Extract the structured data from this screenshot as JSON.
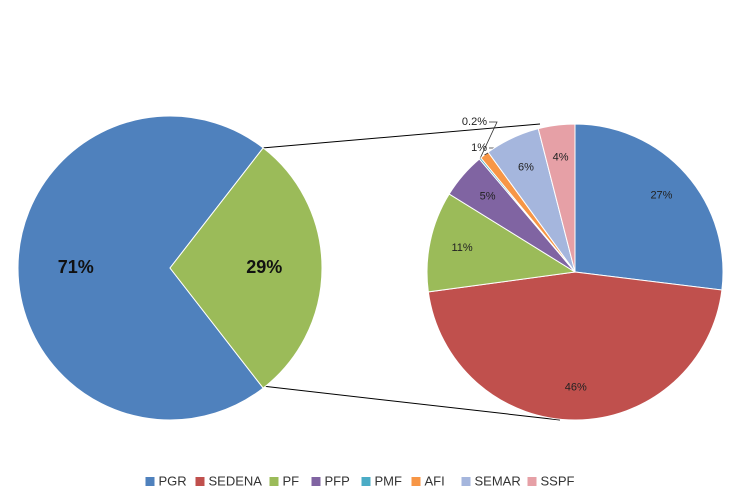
{
  "chart_data": {
    "type": "pie-of-pie",
    "main": {
      "values": [
        71,
        29
      ],
      "value_labels": [
        "71%",
        "29%"
      ],
      "colors": [
        "#4f81bd",
        "#9bbb59"
      ]
    },
    "categories": [
      "PGR",
      "SEDENA",
      "PF",
      "PFP",
      "PMF",
      "AFI",
      "SEMAR",
      "SSPF"
    ],
    "values": [
      27,
      46,
      11,
      5,
      0.2,
      1,
      6,
      4
    ],
    "value_labels": [
      "27%",
      "46%",
      "11%",
      "5%",
      "0.2%",
      "1%",
      "6%",
      "4%"
    ],
    "colors": [
      "#4f81bd",
      "#c0504d",
      "#9bbb59",
      "#8064a2",
      "#4bacc6",
      "#f79646",
      "#a5b6dd",
      "#e6a0a6"
    ],
    "legend": "bottom"
  }
}
